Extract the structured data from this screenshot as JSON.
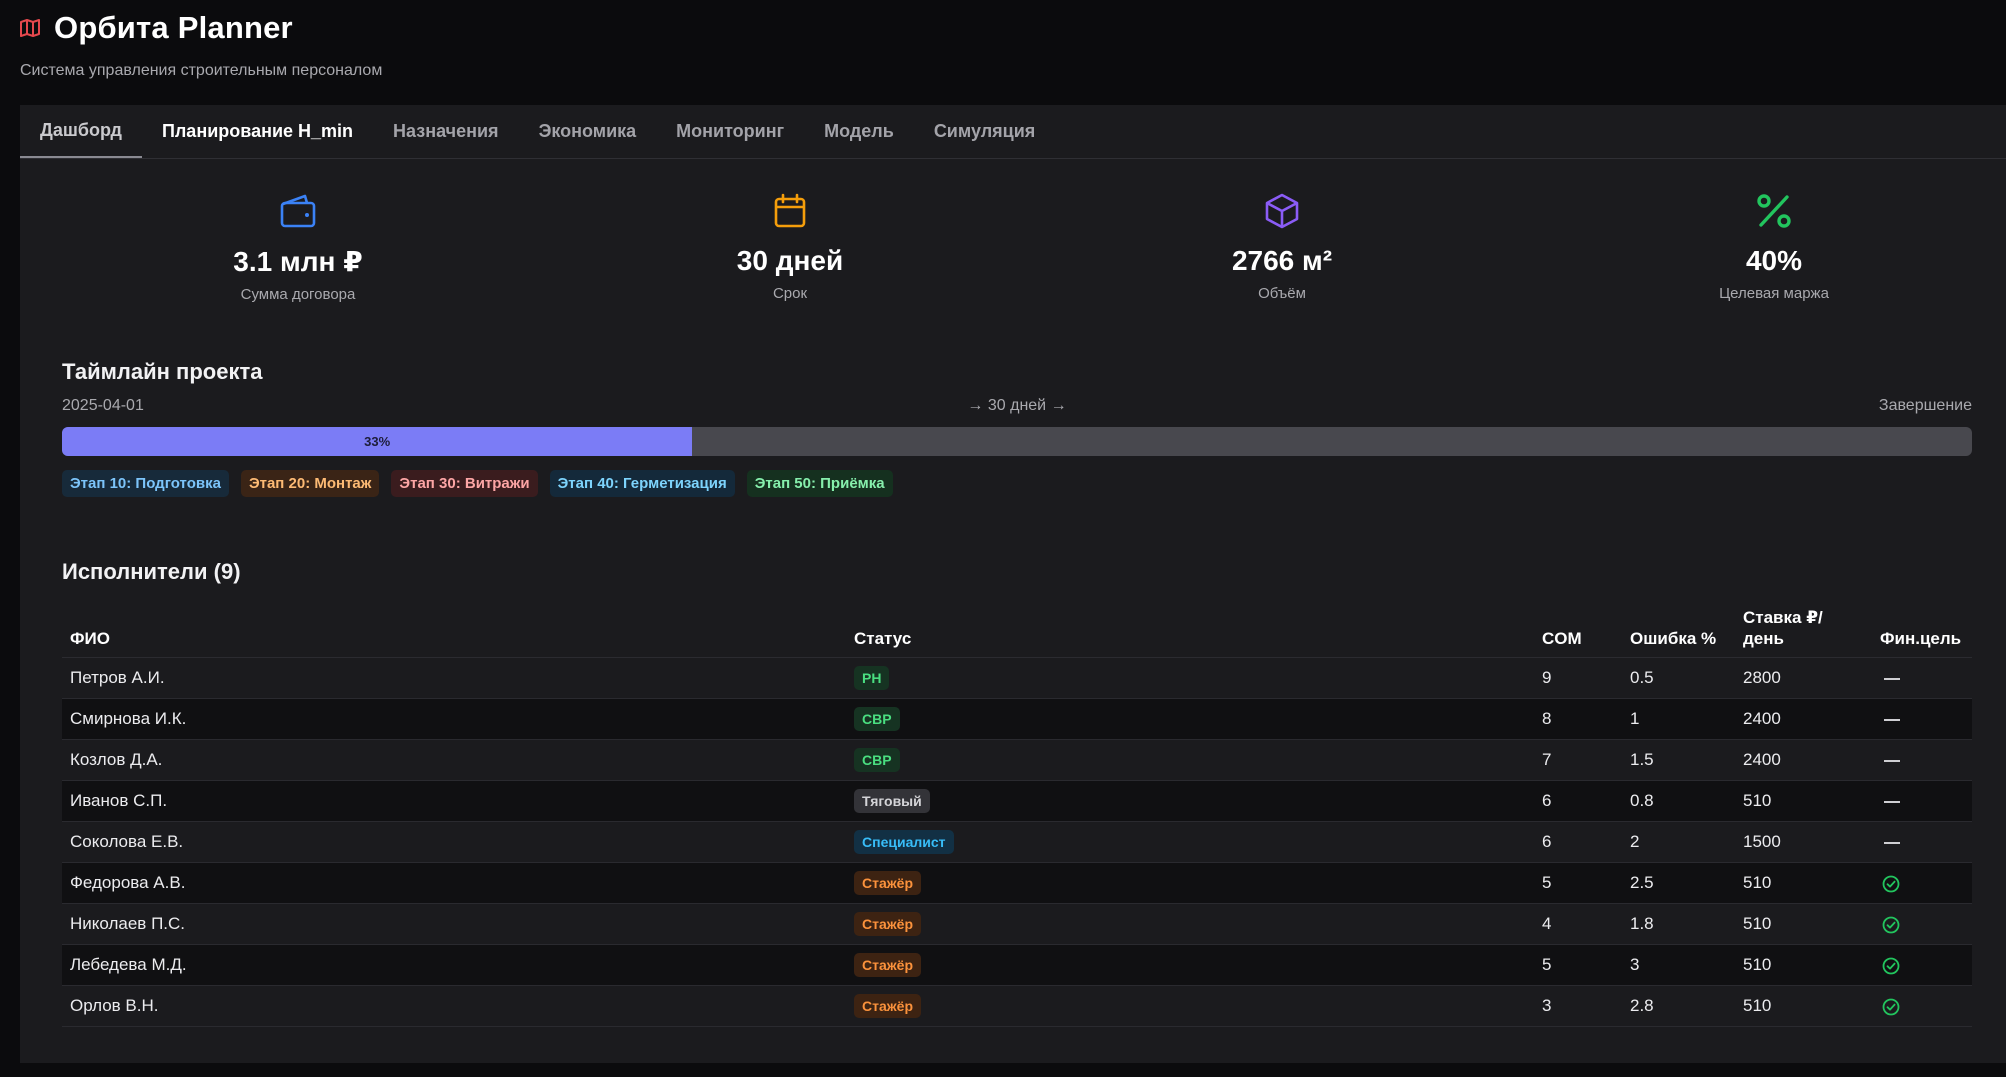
{
  "app": {
    "title": "Орбита Planner",
    "subtitle": "Система управления строительным персоналом",
    "logo_icon": "map-icon",
    "accent": "#e5484d"
  },
  "tabs": [
    {
      "label": "Дашборд",
      "state": "underlined"
    },
    {
      "label": "Планирование H_min",
      "state": "current"
    },
    {
      "label": "Назначения"
    },
    {
      "label": "Экономика"
    },
    {
      "label": "Мониторинг"
    },
    {
      "label": "Модель"
    },
    {
      "label": "Симуляция"
    }
  ],
  "kpis": [
    {
      "value": "3.1 млн ₽",
      "label": "Сумма договора",
      "icon": "wallet-icon",
      "color": "#3b82f6"
    },
    {
      "value": "30 дней",
      "label": "Срок",
      "icon": "calendar-icon",
      "color": "#f59e0b"
    },
    {
      "value": "2766 м²",
      "label": "Объём",
      "icon": "cube-icon",
      "color": "#8b5cf6"
    },
    {
      "value": "40%",
      "label": "Целевая маржа",
      "icon": "percent-icon",
      "color": "#22c55e"
    }
  ],
  "timeline": {
    "title": "Таймлайн проекта",
    "start": "2025-04-01",
    "duration": "→ 30 дней →",
    "end": "Завершение",
    "progress": 33,
    "progress_label": "33%",
    "stages": [
      {
        "label": "Этап 10: Подготовка",
        "color": "#7cc4fa",
        "bg": "#172a3a"
      },
      {
        "label": "Этап 20: Монтаж",
        "color": "#fdba74",
        "bg": "#3a2416"
      },
      {
        "label": "Этап 30: Витражи",
        "color": "#fca5a5",
        "bg": "#3a1c1e"
      },
      {
        "label": "Этап 40: Герметизация",
        "color": "#7dd3fc",
        "bg": "#14293a"
      },
      {
        "label": "Этап 50: Приёмка",
        "color": "#86efac",
        "bg": "#15301f"
      }
    ]
  },
  "performers": {
    "title": "Исполнители (9)",
    "columns": [
      "ФИО",
      "Статус",
      "COM",
      "Ошибка %",
      "Ставка ₽/ день",
      "Фин.цель"
    ],
    "rows": [
      {
        "name": "Петров А.И.",
        "status": "РН",
        "com": "9",
        "error": "0.5",
        "rate": "2800",
        "fin_goal": "dash"
      },
      {
        "name": "Смирнова И.К.",
        "status": "СВР",
        "com": "8",
        "error": "1",
        "rate": "2400",
        "fin_goal": "dash"
      },
      {
        "name": "Козлов Д.А.",
        "status": "СВР",
        "com": "7",
        "error": "1.5",
        "rate": "2400",
        "fin_goal": "dash"
      },
      {
        "name": "Иванов С.П.",
        "status": "Тяговый",
        "com": "6",
        "error": "0.8",
        "rate": "510",
        "fin_goal": "dash"
      },
      {
        "name": "Соколова Е.В.",
        "status": "Специалист",
        "com": "6",
        "error": "2",
        "rate": "1500",
        "fin_goal": "dash"
      },
      {
        "name": "Федорова А.В.",
        "status": "Стажёр",
        "com": "5",
        "error": "2.5",
        "rate": "510",
        "fin_goal": "check"
      },
      {
        "name": "Николаев П.С.",
        "status": "Стажёр",
        "com": "4",
        "error": "1.8",
        "rate": "510",
        "fin_goal": "check"
      },
      {
        "name": "Лебедева М.Д.",
        "status": "Стажёр",
        "com": "5",
        "error": "3",
        "rate": "510",
        "fin_goal": "check"
      },
      {
        "name": "Орлов В.Н.",
        "status": "Стажёр",
        "com": "3",
        "error": "2.8",
        "rate": "510",
        "fin_goal": "check"
      }
    ],
    "status_styles": {
      "РН": {
        "color": "#4ade80",
        "bg": "#163322"
      },
      "СВР": {
        "color": "#4ade80",
        "bg": "#163322"
      },
      "Тяговый": {
        "color": "#d4d4d8",
        "bg": "#333338"
      },
      "Специалист": {
        "color": "#38bdf8",
        "bg": "#123044"
      },
      "Стажёр": {
        "color": "#fb923c",
        "bg": "#3d2312"
      }
    },
    "check_color": "#22c55e"
  }
}
